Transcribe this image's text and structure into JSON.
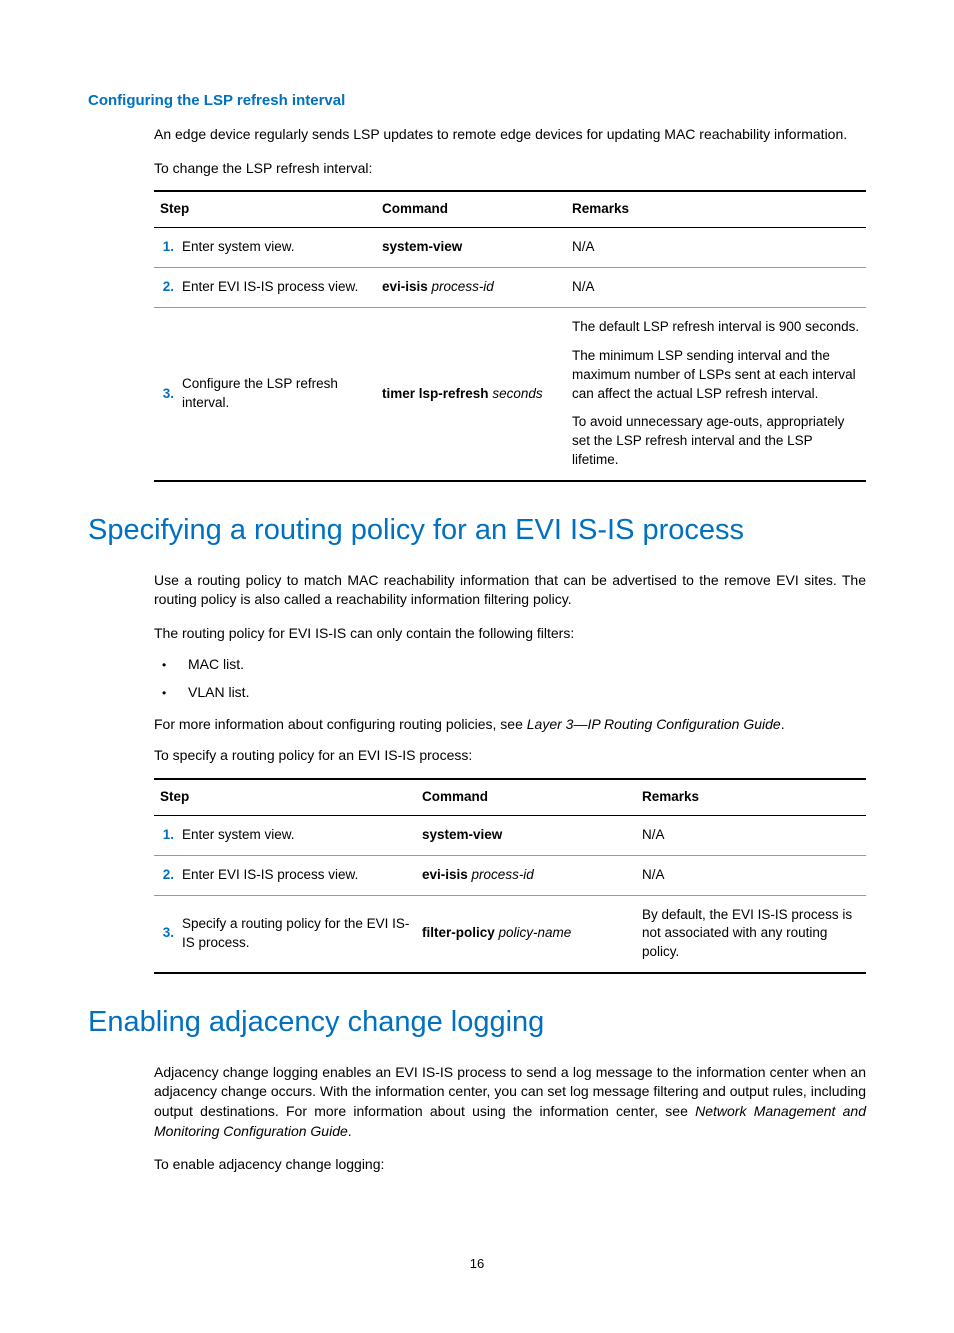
{
  "colors": {
    "accent": "#0070c0",
    "text": "#000000",
    "rule_light": "#999999",
    "bg": "#ffffff"
  },
  "typography": {
    "body_family": "Arial",
    "body_size_pt": 10.5,
    "h1_size_pt": 22,
    "h3_size_pt": 11
  },
  "section1": {
    "heading": "Configuring the LSP refresh interval",
    "p1": "An edge device regularly sends LSP updates to remote edge devices for updating MAC reachability information.",
    "p2": "To change the LSP refresh interval:"
  },
  "table1": {
    "columns": [
      "Step",
      "Command",
      "Remarks"
    ],
    "rows": [
      {
        "num": "1.",
        "step": "Enter system view.",
        "cmd_bold": "system-view",
        "cmd_italic": "",
        "remarks": [
          "N/A"
        ]
      },
      {
        "num": "2.",
        "step": "Enter EVI IS-IS process view.",
        "cmd_bold": "evi-isis",
        "cmd_italic": "process-id",
        "remarks": [
          "N/A"
        ]
      },
      {
        "num": "3.",
        "step": "Configure the LSP refresh interval.",
        "cmd_bold": "timer lsp-refresh",
        "cmd_italic": "seconds",
        "remarks": [
          "The default LSP refresh interval is 900 seconds.",
          "The minimum LSP sending interval and the maximum number of LSPs sent at each interval can affect the actual LSP refresh interval.",
          "To avoid unnecessary age-outs, appropriately set the LSP refresh interval and the LSP lifetime."
        ]
      }
    ]
  },
  "section2": {
    "heading": "Specifying a routing policy for an EVI IS-IS process",
    "p1": "Use a routing policy to match MAC reachability information that can be advertised to the remove EVI sites. The routing policy is also called a reachability information filtering policy.",
    "p2": "The routing policy for EVI IS-IS can only contain the following filters:",
    "bullets": [
      "MAC list.",
      "VLAN list."
    ],
    "p3_a": "For more information about configuring routing policies, see ",
    "p3_ref": "Layer 3—IP Routing Configuration Guide",
    "p3_b": ".",
    "p4": "To specify a routing policy for an EVI IS-IS process:"
  },
  "table2": {
    "columns": [
      "Step",
      "Command",
      "Remarks"
    ],
    "rows": [
      {
        "num": "1.",
        "step": "Enter system view.",
        "cmd_bold": "system-view",
        "cmd_italic": "",
        "remarks": [
          "N/A"
        ]
      },
      {
        "num": "2.",
        "step": "Enter EVI IS-IS process view.",
        "cmd_bold": "evi-isis",
        "cmd_italic": "process-id",
        "remarks": [
          "N/A"
        ]
      },
      {
        "num": "3.",
        "step": "Specify a routing policy for the EVI IS-IS process.",
        "cmd_bold": "filter-policy",
        "cmd_italic": "policy-name",
        "remarks": [
          "By default, the EVI IS-IS process is not associated with any routing policy."
        ]
      }
    ]
  },
  "section3": {
    "heading": "Enabling adjacency change logging",
    "p1_a": "Adjacency change logging enables an EVI IS-IS process to send a log message to the information center when an adjacency change occurs. With the information center, you can set log message filtering and output rules, including output destinations. For more information about using the information center, see ",
    "p1_ref": "Network Management and Monitoring Configuration Guide",
    "p1_b": ".",
    "p2": "To enable adjacency change logging:"
  },
  "page_number": "16"
}
